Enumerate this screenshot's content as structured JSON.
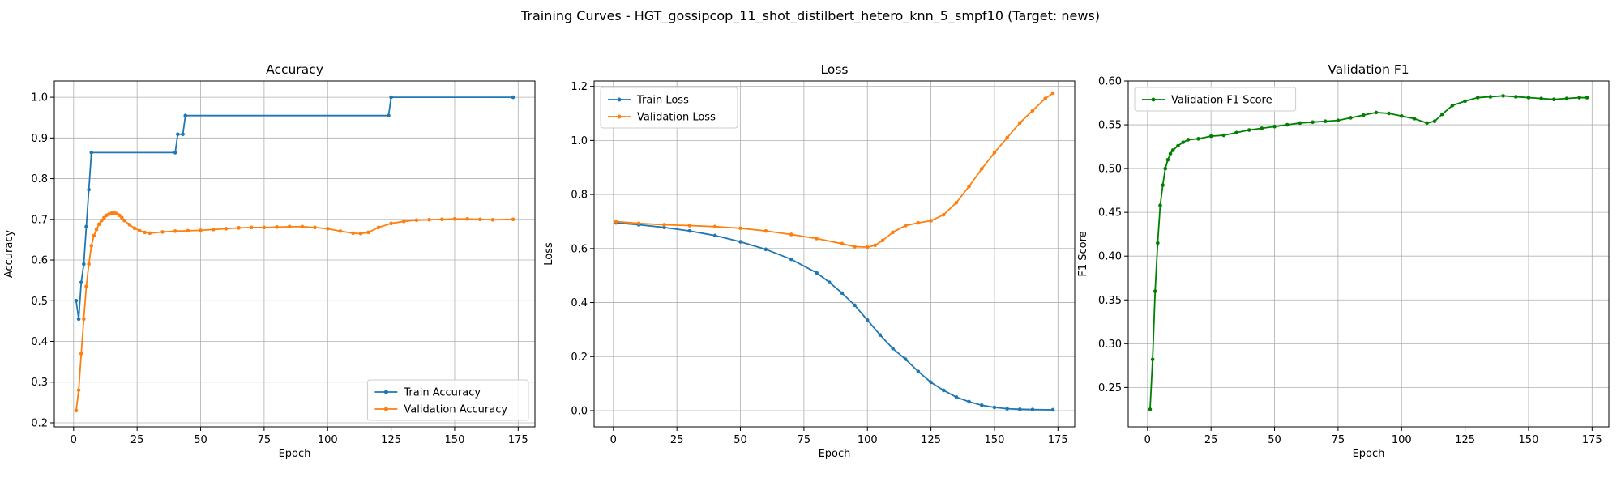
{
  "figure": {
    "suptitle": "Training Curves - HGT_gossipcop_11_shot_distilbert_hetero_knn_5_smpf10 (Target: news)"
  },
  "chart_data": [
    {
      "type": "line",
      "title": "Accuracy",
      "xlabel": "Epoch",
      "ylabel": "Accuracy",
      "xlim": [
        -7.6,
        181.6
      ],
      "ylim": [
        0.19,
        1.04
      ],
      "xticks": [
        0,
        25,
        50,
        75,
        100,
        125,
        150,
        175
      ],
      "yticks": [
        0.2,
        0.3,
        0.4,
        0.5,
        0.6,
        0.7,
        0.8,
        0.9,
        1.0
      ],
      "grid": true,
      "legend": "lower right",
      "series": [
        {
          "name": "Train Accuracy",
          "color": "#1f77b4",
          "points": [
            [
              1,
              0.5
            ],
            [
              2,
              0.455
            ],
            [
              3,
              0.545
            ],
            [
              4,
              0.59
            ],
            [
              5,
              0.682
            ],
            [
              6,
              0.773
            ],
            [
              7,
              0.864
            ],
            [
              40,
              0.864
            ],
            [
              41,
              0.909
            ],
            [
              43,
              0.909
            ],
            [
              44,
              0.955
            ],
            [
              124,
              0.955
            ],
            [
              125,
              1.0
            ],
            [
              173,
              1.0
            ]
          ]
        },
        {
          "name": "Validation Accuracy",
          "color": "#ff7f0e",
          "points": [
            [
              1,
              0.23
            ],
            [
              2,
              0.28
            ],
            [
              3,
              0.37
            ],
            [
              4,
              0.455
            ],
            [
              5,
              0.535
            ],
            [
              6,
              0.59
            ],
            [
              7,
              0.635
            ],
            [
              8,
              0.66
            ],
            [
              9,
              0.675
            ],
            [
              10,
              0.688
            ],
            [
              11,
              0.697
            ],
            [
              12,
              0.704
            ],
            [
              13,
              0.71
            ],
            [
              14,
              0.713
            ],
            [
              15,
              0.715
            ],
            [
              16,
              0.716
            ],
            [
              17,
              0.714
            ],
            [
              18,
              0.71
            ],
            [
              19,
              0.704
            ],
            [
              20,
              0.697
            ],
            [
              22,
              0.687
            ],
            [
              24,
              0.678
            ],
            [
              26,
              0.672
            ],
            [
              28,
              0.668
            ],
            [
              30,
              0.666
            ],
            [
              35,
              0.669
            ],
            [
              40,
              0.671
            ],
            [
              45,
              0.672
            ],
            [
              50,
              0.673
            ],
            [
              55,
              0.675
            ],
            [
              60,
              0.677
            ],
            [
              65,
              0.679
            ],
            [
              70,
              0.68
            ],
            [
              75,
              0.68
            ],
            [
              80,
              0.681
            ],
            [
              85,
              0.682
            ],
            [
              90,
              0.682
            ],
            [
              95,
              0.68
            ],
            [
              100,
              0.677
            ],
            [
              105,
              0.671
            ],
            [
              110,
              0.666
            ],
            [
              113,
              0.665
            ],
            [
              116,
              0.668
            ],
            [
              120,
              0.68
            ],
            [
              125,
              0.69
            ],
            [
              130,
              0.695
            ],
            [
              135,
              0.698
            ],
            [
              140,
              0.699
            ],
            [
              145,
              0.7
            ],
            [
              150,
              0.701
            ],
            [
              155,
              0.701
            ],
            [
              160,
              0.7
            ],
            [
              165,
              0.699
            ],
            [
              173,
              0.7
            ]
          ]
        }
      ]
    },
    {
      "type": "line",
      "title": "Loss",
      "xlabel": "Epoch",
      "ylabel": "Loss",
      "xlim": [
        -7.6,
        181.6
      ],
      "ylim": [
        -0.06,
        1.22
      ],
      "xticks": [
        0,
        25,
        50,
        75,
        100,
        125,
        150,
        175
      ],
      "yticks": [
        0.0,
        0.2,
        0.4,
        0.6,
        0.8,
        1.0,
        1.2
      ],
      "grid": true,
      "legend": "upper left",
      "series": [
        {
          "name": "Train Loss",
          "color": "#1f77b4",
          "points": [
            [
              1,
              0.695
            ],
            [
              10,
              0.688
            ],
            [
              20,
              0.678
            ],
            [
              30,
              0.665
            ],
            [
              40,
              0.648
            ],
            [
              50,
              0.625
            ],
            [
              60,
              0.597
            ],
            [
              70,
              0.56
            ],
            [
              80,
              0.51
            ],
            [
              85,
              0.475
            ],
            [
              90,
              0.435
            ],
            [
              95,
              0.39
            ],
            [
              100,
              0.335
            ],
            [
              105,
              0.28
            ],
            [
              110,
              0.23
            ],
            [
              115,
              0.19
            ],
            [
              120,
              0.145
            ],
            [
              125,
              0.105
            ],
            [
              130,
              0.075
            ],
            [
              135,
              0.05
            ],
            [
              140,
              0.033
            ],
            [
              145,
              0.02
            ],
            [
              150,
              0.012
            ],
            [
              155,
              0.007
            ],
            [
              160,
              0.005
            ],
            [
              165,
              0.004
            ],
            [
              173,
              0.003
            ]
          ]
        },
        {
          "name": "Validation Loss",
          "color": "#ff7f0e",
          "points": [
            [
              1,
              0.7
            ],
            [
              10,
              0.693
            ],
            [
              20,
              0.688
            ],
            [
              30,
              0.685
            ],
            [
              40,
              0.681
            ],
            [
              50,
              0.675
            ],
            [
              60,
              0.665
            ],
            [
              70,
              0.652
            ],
            [
              80,
              0.637
            ],
            [
              90,
              0.618
            ],
            [
              95,
              0.607
            ],
            [
              100,
              0.605
            ],
            [
              103,
              0.612
            ],
            [
              106,
              0.63
            ],
            [
              110,
              0.66
            ],
            [
              115,
              0.685
            ],
            [
              120,
              0.695
            ],
            [
              125,
              0.703
            ],
            [
              130,
              0.725
            ],
            [
              135,
              0.77
            ],
            [
              140,
              0.83
            ],
            [
              145,
              0.895
            ],
            [
              150,
              0.955
            ],
            [
              155,
              1.01
            ],
            [
              160,
              1.065
            ],
            [
              165,
              1.11
            ],
            [
              170,
              1.155
            ],
            [
              173,
              1.175
            ]
          ]
        }
      ]
    },
    {
      "type": "line",
      "title": "Validation F1",
      "xlabel": "Epoch",
      "ylabel": "F1 Score",
      "xlim": [
        -7.6,
        181.6
      ],
      "ylim": [
        0.205,
        0.6
      ],
      "xticks": [
        0,
        25,
        50,
        75,
        100,
        125,
        150,
        175
      ],
      "yticks": [
        0.25,
        0.3,
        0.35,
        0.4,
        0.45,
        0.5,
        0.55,
        0.6
      ],
      "ytick_labels": [
        "0.25",
        "0.30",
        "0.35",
        "0.40",
        "0.45",
        "0.50",
        "0.55",
        "0.60"
      ],
      "grid": true,
      "legend": "upper left",
      "series": [
        {
          "name": "Validation F1 Score",
          "color": "#008000",
          "points": [
            [
              1,
              0.225
            ],
            [
              2,
              0.282
            ],
            [
              3,
              0.36
            ],
            [
              4,
              0.415
            ],
            [
              5,
              0.458
            ],
            [
              6,
              0.481
            ],
            [
              7,
              0.5
            ],
            [
              8,
              0.51
            ],
            [
              9,
              0.517
            ],
            [
              10,
              0.521
            ],
            [
              12,
              0.526
            ],
            [
              14,
              0.53
            ],
            [
              16,
              0.533
            ],
            [
              20,
              0.534
            ],
            [
              25,
              0.537
            ],
            [
              30,
              0.538
            ],
            [
              35,
              0.541
            ],
            [
              40,
              0.544
            ],
            [
              45,
              0.546
            ],
            [
              50,
              0.548
            ],
            [
              55,
              0.55
            ],
            [
              60,
              0.552
            ],
            [
              65,
              0.553
            ],
            [
              70,
              0.554
            ],
            [
              75,
              0.555
            ],
            [
              80,
              0.558
            ],
            [
              85,
              0.561
            ],
            [
              90,
              0.564
            ],
            [
              95,
              0.563
            ],
            [
              100,
              0.56
            ],
            [
              105,
              0.557
            ],
            [
              110,
              0.552
            ],
            [
              113,
              0.554
            ],
            [
              116,
              0.562
            ],
            [
              120,
              0.572
            ],
            [
              125,
              0.577
            ],
            [
              130,
              0.581
            ],
            [
              135,
              0.582
            ],
            [
              140,
              0.583
            ],
            [
              145,
              0.582
            ],
            [
              150,
              0.581
            ],
            [
              155,
              0.58
            ],
            [
              160,
              0.579
            ],
            [
              165,
              0.58
            ],
            [
              170,
              0.581
            ],
            [
              173,
              0.581
            ]
          ]
        }
      ]
    }
  ]
}
